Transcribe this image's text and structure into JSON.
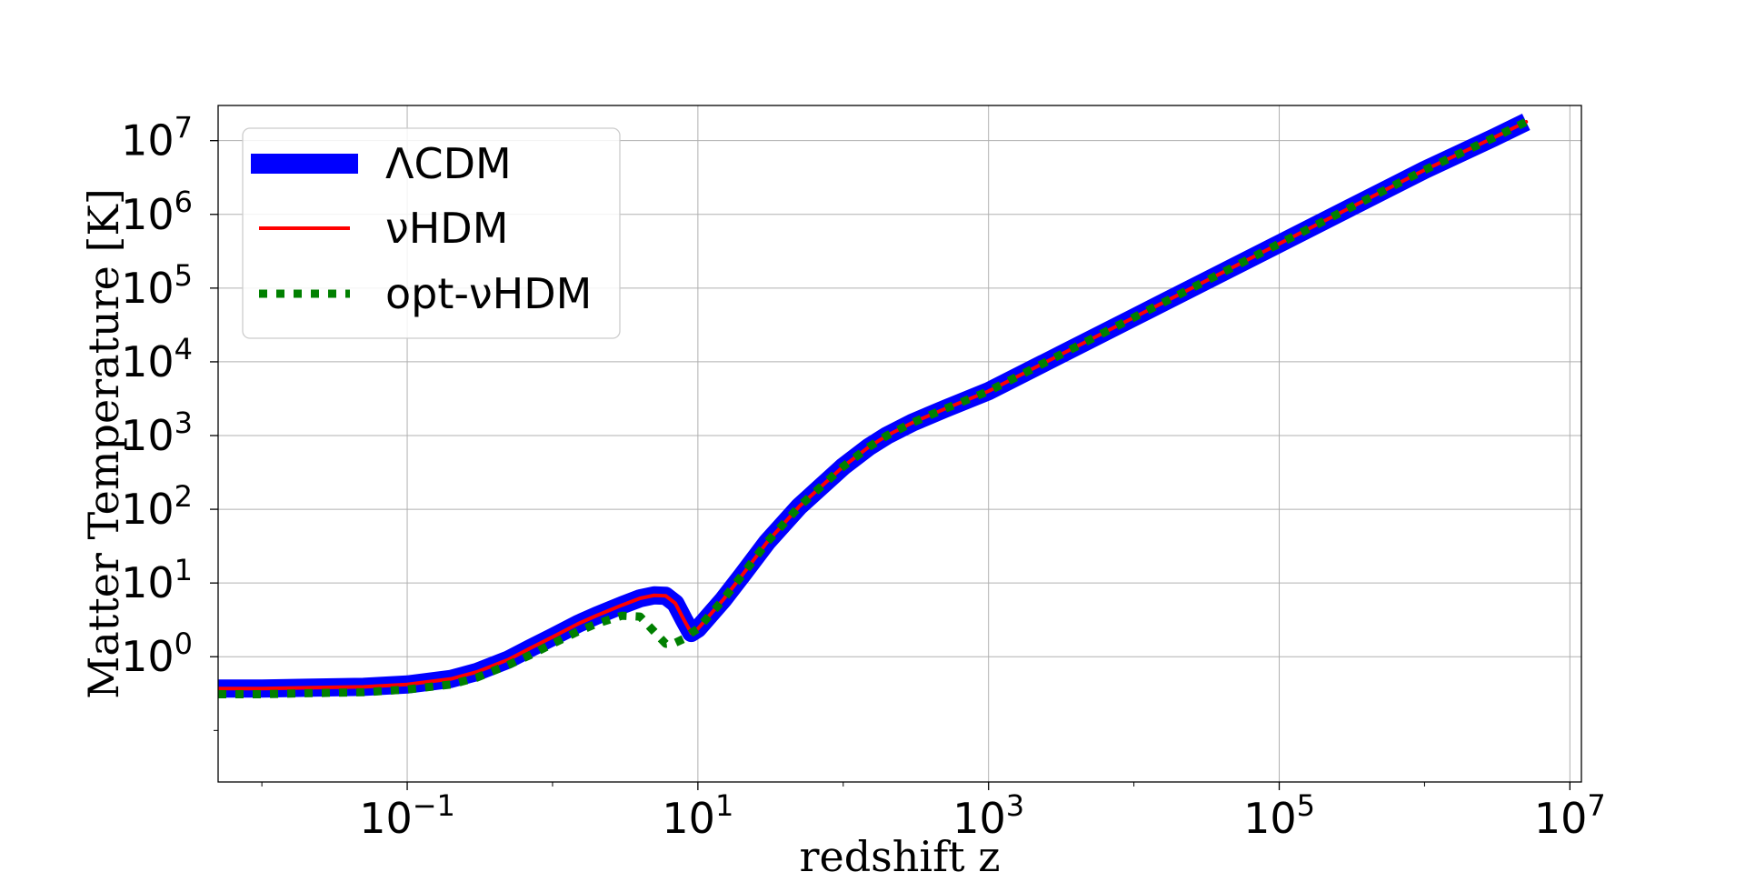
{
  "chart_data": {
    "type": "line",
    "xlabel": "redshift z",
    "ylabel": "Matter Temperature [K]",
    "xscale": "log",
    "yscale": "log",
    "xlim": [
      0.005,
      12000000
    ],
    "ylim": [
      0.02,
      30000000
    ],
    "grid": true,
    "legend_position": "top-left",
    "x_ticks": [
      {
        "base": "10",
        "exp": "−1",
        "value": 0.1
      },
      {
        "base": "10",
        "exp": "1",
        "value": 10
      },
      {
        "base": "10",
        "exp": "3",
        "value": 1000
      },
      {
        "base": "10",
        "exp": "5",
        "value": 100000
      },
      {
        "base": "10",
        "exp": "7",
        "value": 10000000
      }
    ],
    "y_ticks": [
      {
        "base": "10",
        "exp": "0",
        "value": 1
      },
      {
        "base": "10",
        "exp": "1",
        "value": 10
      },
      {
        "base": "10",
        "exp": "2",
        "value": 100
      },
      {
        "base": "10",
        "exp": "3",
        "value": 1000
      },
      {
        "base": "10",
        "exp": "4",
        "value": 10000
      },
      {
        "base": "10",
        "exp": "5",
        "value": 100000
      },
      {
        "base": "10",
        "exp": "6",
        "value": 1000000
      },
      {
        "base": "10",
        "exp": "7",
        "value": 10000000
      }
    ],
    "series": [
      {
        "name": "ΛCDM",
        "color": "#0000ff",
        "style": "solid-thick",
        "x": [
          0.005,
          0.01,
          0.02,
          0.05,
          0.1,
          0.2,
          0.3,
          0.5,
          0.7,
          1,
          1.5,
          2,
          3,
          4,
          5,
          6,
          7,
          8,
          9,
          10,
          15,
          20,
          30,
          50,
          100,
          150,
          200,
          300,
          500,
          1000,
          3000,
          10000,
          30000,
          100000,
          300000,
          1000000,
          3000000,
          5000000
        ],
        "y": [
          0.37,
          0.37,
          0.38,
          0.39,
          0.42,
          0.5,
          0.62,
          0.92,
          1.3,
          1.85,
          2.8,
          3.6,
          5.0,
          6.2,
          6.8,
          6.7,
          5.3,
          3.2,
          2.1,
          2.4,
          6.0,
          12.5,
          36,
          110,
          380,
          700,
          1000,
          1500,
          2300,
          4000,
          12000,
          40000,
          120000,
          400000,
          1200000,
          4000000,
          11000000,
          18000000
        ]
      },
      {
        "name": "νHDM",
        "color": "#ff0000",
        "style": "solid",
        "x": [
          0.005,
          0.01,
          0.02,
          0.05,
          0.1,
          0.2,
          0.3,
          0.5,
          0.7,
          1,
          1.5,
          2,
          3,
          4,
          5,
          6,
          7,
          8,
          9,
          10,
          15,
          20,
          30,
          50,
          100,
          150,
          200,
          300,
          500,
          1000,
          3000,
          10000,
          30000,
          100000,
          300000,
          1000000,
          3000000,
          5000000
        ],
        "y": [
          0.37,
          0.37,
          0.38,
          0.39,
          0.42,
          0.5,
          0.62,
          0.92,
          1.3,
          1.85,
          2.8,
          3.6,
          5.0,
          6.2,
          6.8,
          6.7,
          5.3,
          3.2,
          2.1,
          2.4,
          6.0,
          12.5,
          36,
          110,
          380,
          700,
          1000,
          1500,
          2300,
          4000,
          12000,
          40000,
          120000,
          400000,
          1200000,
          4000000,
          11000000,
          18000000
        ]
      },
      {
        "name": "opt-νHDM",
        "color": "#008000",
        "style": "dotted",
        "x": [
          0.005,
          0.01,
          0.02,
          0.05,
          0.1,
          0.2,
          0.3,
          0.5,
          0.7,
          1,
          1.5,
          2,
          3,
          4,
          5,
          6,
          7,
          8,
          9,
          10,
          15,
          20,
          30,
          50,
          100,
          150,
          200,
          300,
          500,
          1000,
          3000,
          10000,
          30000,
          100000,
          300000,
          1000000,
          3000000,
          5000000
        ],
        "y": [
          0.31,
          0.31,
          0.32,
          0.33,
          0.36,
          0.42,
          0.52,
          0.78,
          1.05,
          1.5,
          2.2,
          2.8,
          3.6,
          3.5,
          2.2,
          1.5,
          1.55,
          1.75,
          2.1,
          2.4,
          6.0,
          12.5,
          36,
          110,
          380,
          700,
          1000,
          1500,
          2300,
          4000,
          12000,
          40000,
          120000,
          400000,
          1200000,
          4000000,
          11000000,
          18000000
        ]
      }
    ]
  }
}
